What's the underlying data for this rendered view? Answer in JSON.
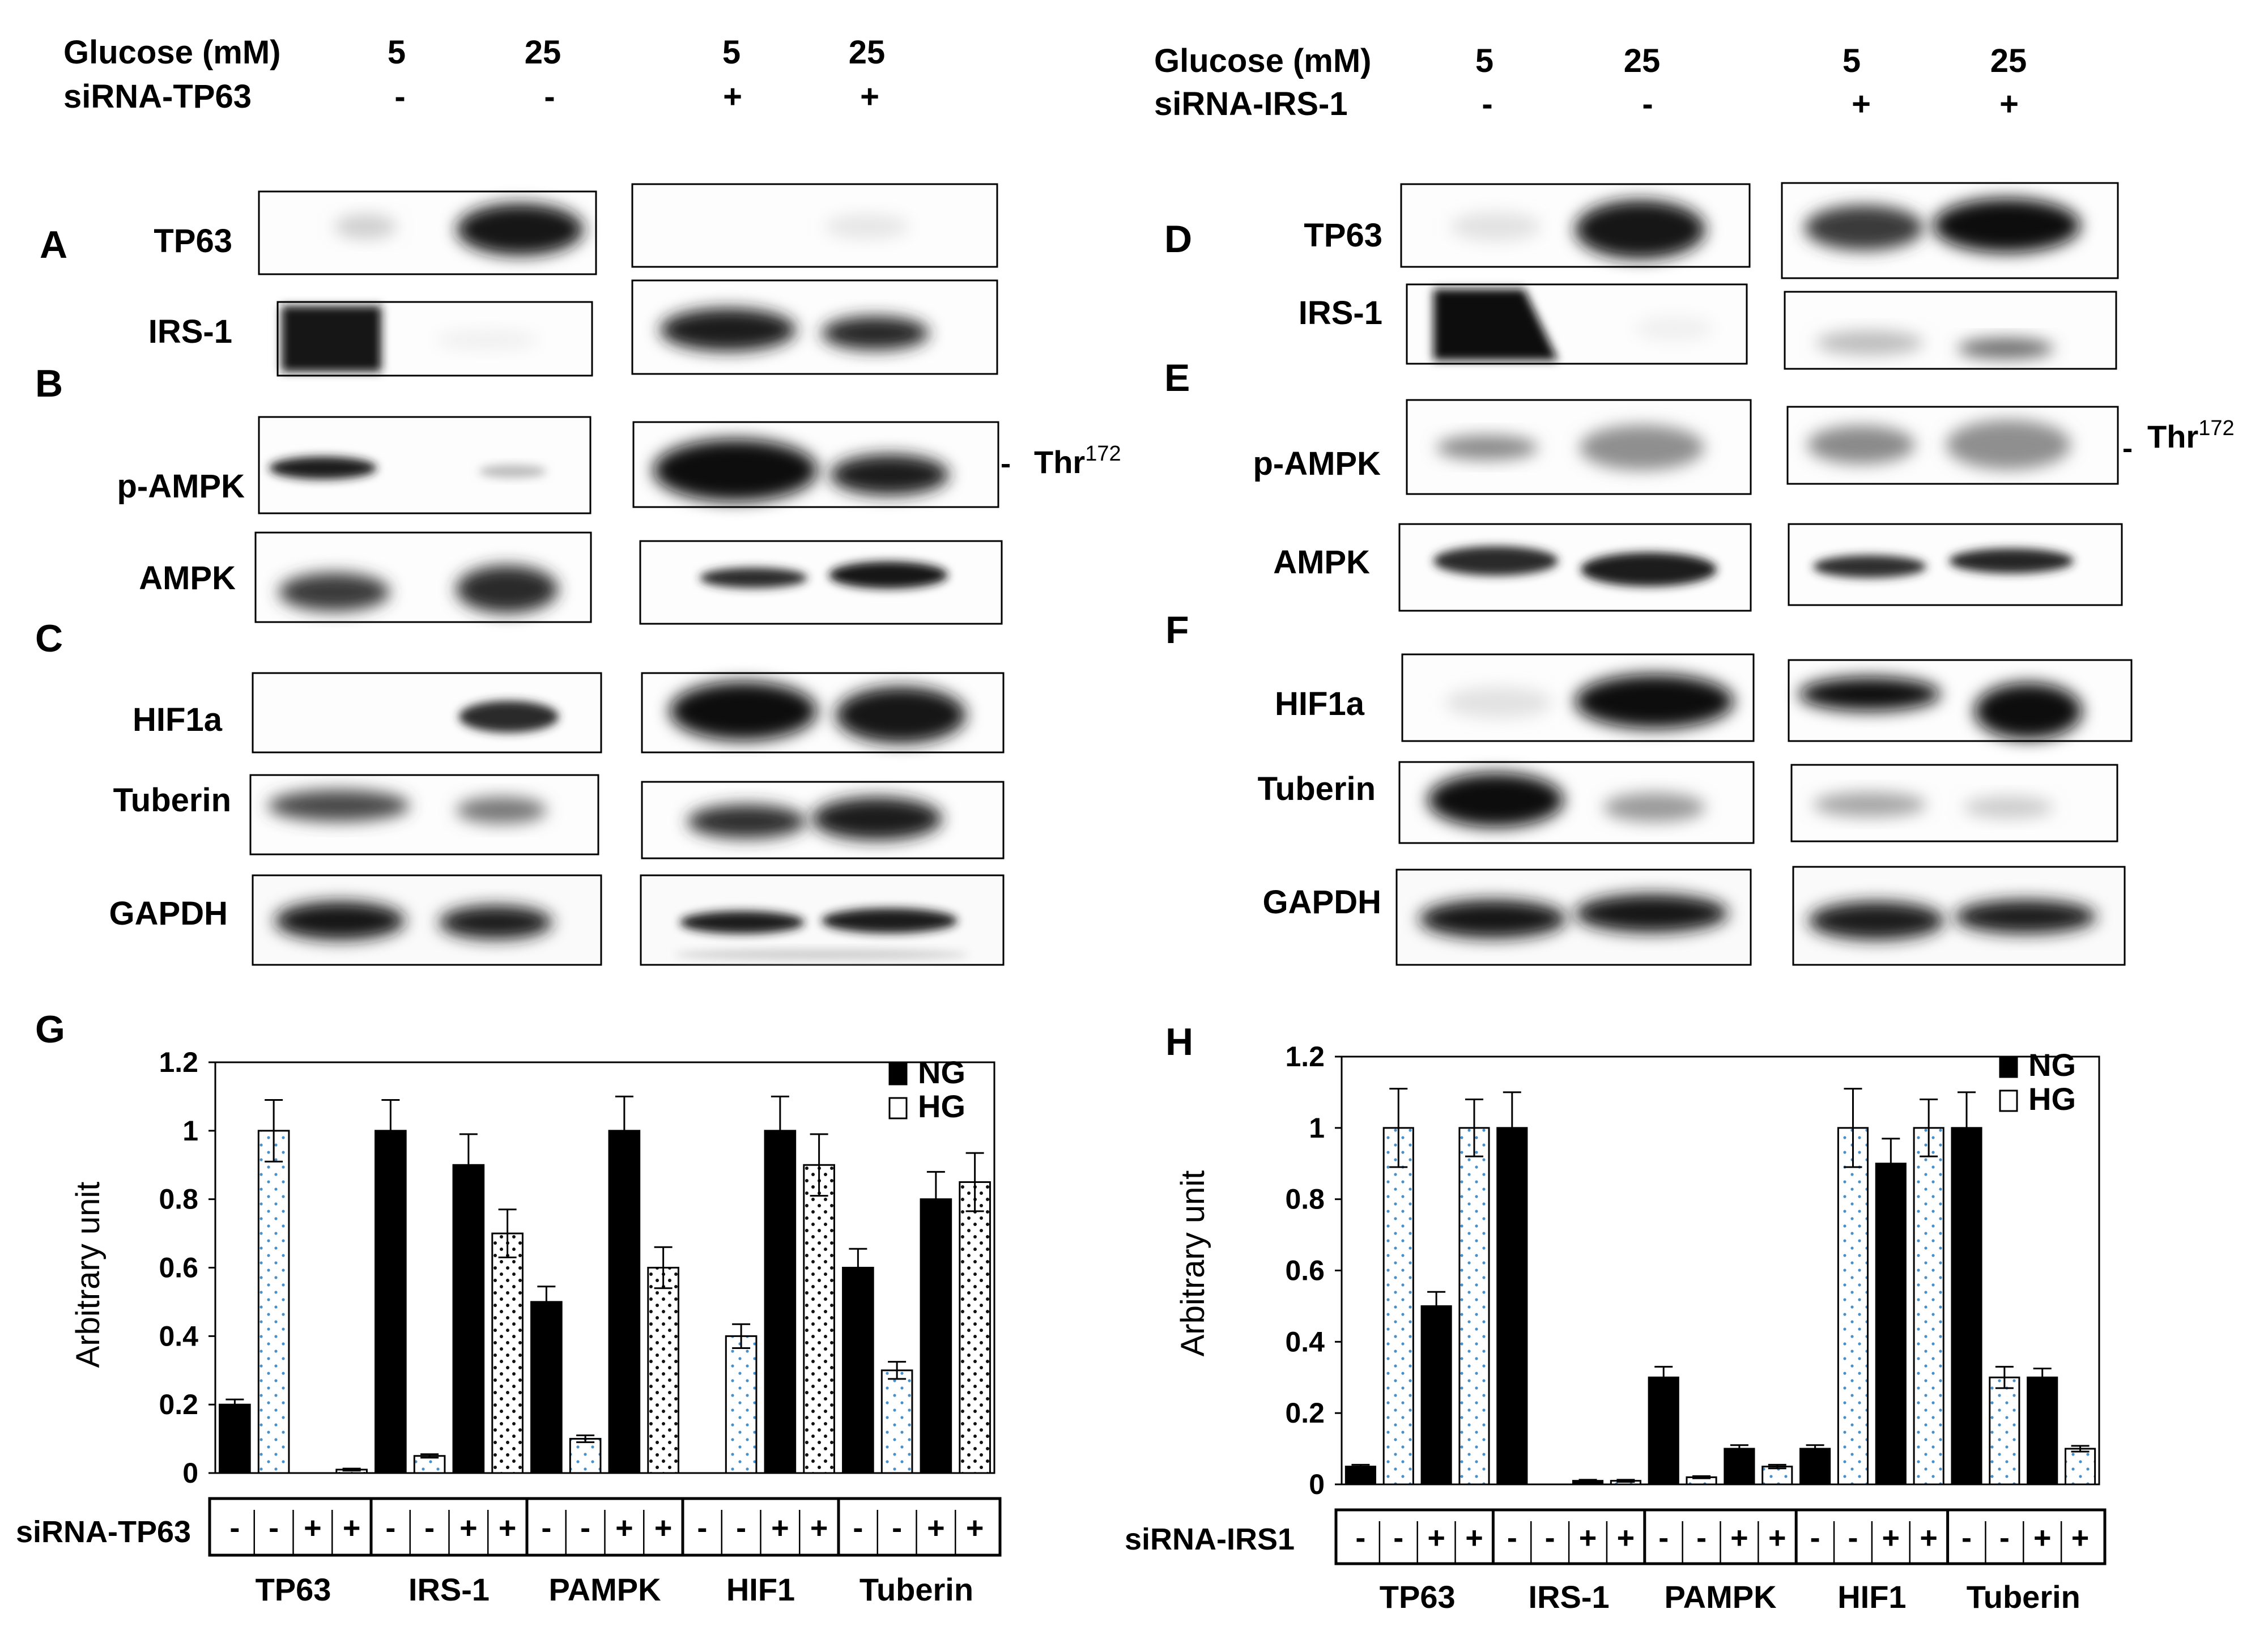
{
  "figure": {
    "left": {
      "header": {
        "glucose_label": "Glucose (mM)",
        "sirna_label": "siRNA-TP63",
        "glucose_values": [
          "5",
          "25",
          "5",
          "25"
        ],
        "sirna_values": [
          "-",
          "-",
          "+",
          "+"
        ]
      },
      "panel_letters": [
        "A",
        "B",
        "C"
      ],
      "blot_labels": [
        "TP63",
        "IRS-1",
        "p-AMPK",
        "AMPK",
        "HIF1a",
        "Tuberin",
        "GAPDH"
      ],
      "site_annotation": {
        "base": "Thr",
        "superscript": "172"
      }
    },
    "right": {
      "header": {
        "glucose_label": "Glucose (mM)",
        "sirna_label": "siRNA-IRS-1",
        "glucose_values": [
          "5",
          "25",
          "5",
          "25"
        ],
        "sirna_values": [
          "-",
          "-",
          "+",
          "+"
        ]
      },
      "panel_letters": [
        "D",
        "E",
        "F"
      ],
      "blot_labels": [
        "TP63",
        "IRS-1",
        "p-AMPK",
        "AMPK",
        "HIF1a",
        "Tuberin",
        "GAPDH"
      ],
      "site_annotation": {
        "base": "Thr",
        "superscript": "172"
      }
    }
  },
  "chart_data": [
    {
      "type": "bar",
      "panel": "G",
      "ylabel": "Arbitrary unit",
      "ylim": [
        0,
        1.2
      ],
      "yticks": [
        "0",
        "0.2",
        "0.4",
        "0.6",
        "0.8",
        "1",
        "1.2"
      ],
      "categories": [
        "TP63",
        "IRS-1",
        "PAMPK",
        "HIF1",
        "Tuberin"
      ],
      "row_label": "siRNA-TP63",
      "row_signs": [
        "-",
        "-",
        "+",
        "+"
      ],
      "legend": [
        "NG",
        "HG"
      ],
      "legend_position": "top-right",
      "bars": [
        {
          "group": 0,
          "sirna": "-",
          "series": "NG",
          "value": 0.2,
          "err": 0.015
        },
        {
          "group": 0,
          "sirna": "-",
          "series": "HG",
          "value": 1.0,
          "err": 0.09
        },
        {
          "group": 0,
          "sirna": "+",
          "series": "NG",
          "value": 0.0,
          "err": 0
        },
        {
          "group": 0,
          "sirna": "+",
          "series": "HG",
          "value": 0.01,
          "err": 0.003
        },
        {
          "group": 1,
          "sirna": "-",
          "series": "NG",
          "value": 1.0,
          "err": 0.09
        },
        {
          "group": 1,
          "sirna": "-",
          "series": "HG",
          "value": 0.05,
          "err": 0.005
        },
        {
          "group": 1,
          "sirna": "+",
          "series": "NG",
          "value": 0.9,
          "err": 0.09
        },
        {
          "group": 1,
          "sirna": "+",
          "series": "HG",
          "value": 0.7,
          "err": 0.07
        },
        {
          "group": 2,
          "sirna": "-",
          "series": "NG",
          "value": 0.5,
          "err": 0.045
        },
        {
          "group": 2,
          "sirna": "-",
          "series": "HG",
          "value": 0.1,
          "err": 0.01
        },
        {
          "group": 2,
          "sirna": "+",
          "series": "NG",
          "value": 1.0,
          "err": 0.1
        },
        {
          "group": 2,
          "sirna": "+",
          "series": "HG",
          "value": 0.6,
          "err": 0.06
        },
        {
          "group": 3,
          "sirna": "-",
          "series": "NG",
          "value": 0.0,
          "err": 0
        },
        {
          "group": 3,
          "sirna": "-",
          "series": "HG",
          "value": 0.4,
          "err": 0.035
        },
        {
          "group": 3,
          "sirna": "+",
          "series": "NG",
          "value": 1.0,
          "err": 0.1
        },
        {
          "group": 3,
          "sirna": "+",
          "series": "HG",
          "value": 0.9,
          "err": 0.09
        },
        {
          "group": 4,
          "sirna": "-",
          "series": "NG",
          "value": 0.6,
          "err": 0.055
        },
        {
          "group": 4,
          "sirna": "-",
          "series": "HG",
          "value": 0.3,
          "err": 0.025
        },
        {
          "group": 4,
          "sirna": "+",
          "series": "NG",
          "value": 0.8,
          "err": 0.08
        },
        {
          "group": 4,
          "sirna": "+",
          "series": "HG",
          "value": 0.85,
          "err": 0.085
        }
      ]
    },
    {
      "type": "bar",
      "panel": "H",
      "ylabel": "Arbitrary unit",
      "ylim": [
        0,
        1.2
      ],
      "yticks": [
        "0",
        "0.2",
        "0.4",
        "0.6",
        "0.8",
        "1",
        "1.2"
      ],
      "categories": [
        "TP63",
        "IRS-1",
        "PAMPK",
        "HIF1",
        "Tuberin"
      ],
      "row_label": "siRNA-IRS1",
      "row_signs": [
        "-",
        "-",
        "+",
        "+"
      ],
      "legend": [
        "NG",
        "HG"
      ],
      "legend_position": "top-right",
      "bars": [
        {
          "group": 0,
          "sirna": "-",
          "series": "NG",
          "value": 0.05,
          "err": 0.005
        },
        {
          "group": 0,
          "sirna": "-",
          "series": "HG",
          "value": 1.0,
          "err": 0.11
        },
        {
          "group": 0,
          "sirna": "+",
          "series": "NG",
          "value": 0.5,
          "err": 0.04
        },
        {
          "group": 0,
          "sirna": "+",
          "series": "HG",
          "value": 1.0,
          "err": 0.08
        },
        {
          "group": 1,
          "sirna": "-",
          "series": "NG",
          "value": 1.0,
          "err": 0.1
        },
        {
          "group": 1,
          "sirna": "-",
          "series": "HG",
          "value": 0.0,
          "err": 0
        },
        {
          "group": 1,
          "sirna": "+",
          "series": "NG",
          "value": 0.01,
          "err": 0.003
        },
        {
          "group": 1,
          "sirna": "+",
          "series": "HG",
          "value": 0.01,
          "err": 0.003
        },
        {
          "group": 2,
          "sirna": "-",
          "series": "NG",
          "value": 0.3,
          "err": 0.03
        },
        {
          "group": 2,
          "sirna": "-",
          "series": "HG",
          "value": 0.02,
          "err": 0.003
        },
        {
          "group": 2,
          "sirna": "+",
          "series": "NG",
          "value": 0.1,
          "err": 0.01
        },
        {
          "group": 2,
          "sirna": "+",
          "series": "HG",
          "value": 0.05,
          "err": 0.005
        },
        {
          "group": 3,
          "sirna": "-",
          "series": "NG",
          "value": 0.1,
          "err": 0.01
        },
        {
          "group": 3,
          "sirna": "-",
          "series": "HG",
          "value": 1.0,
          "err": 0.11
        },
        {
          "group": 3,
          "sirna": "+",
          "series": "NG",
          "value": 0.9,
          "err": 0.07
        },
        {
          "group": 3,
          "sirna": "+",
          "series": "HG",
          "value": 1.0,
          "err": 0.08
        },
        {
          "group": 4,
          "sirna": "-",
          "series": "NG",
          "value": 1.0,
          "err": 0.1
        },
        {
          "group": 4,
          "sirna": "-",
          "series": "HG",
          "value": 0.3,
          "err": 0.03
        },
        {
          "group": 4,
          "sirna": "+",
          "series": "NG",
          "value": 0.3,
          "err": 0.025
        },
        {
          "group": 4,
          "sirna": "+",
          "series": "HG",
          "value": 0.1,
          "err": 0.008
        }
      ]
    }
  ]
}
